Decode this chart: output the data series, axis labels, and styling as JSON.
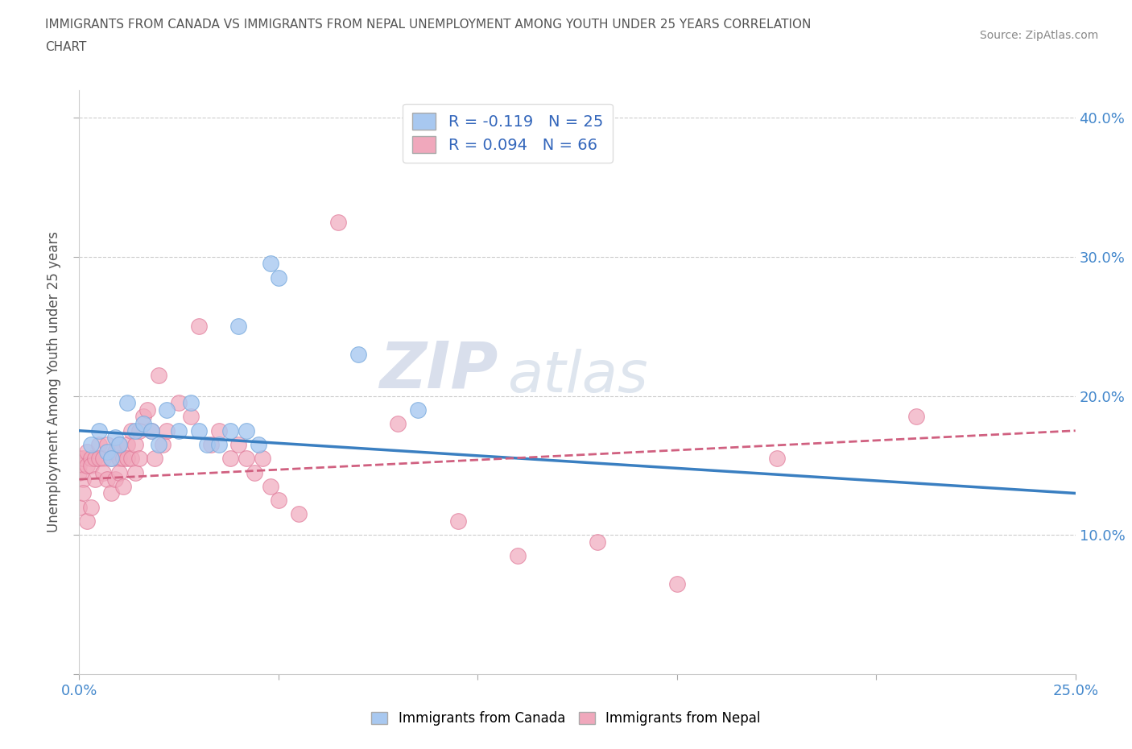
{
  "title_line1": "IMMIGRANTS FROM CANADA VS IMMIGRANTS FROM NEPAL UNEMPLOYMENT AMONG YOUTH UNDER 25 YEARS CORRELATION",
  "title_line2": "CHART",
  "source": "Source: ZipAtlas.com",
  "ylabel": "Unemployment Among Youth under 25 years",
  "xlim": [
    0.0,
    0.25
  ],
  "ylim": [
    0.0,
    0.42
  ],
  "xticks": [
    0.0,
    0.05,
    0.1,
    0.15,
    0.2,
    0.25
  ],
  "yticks": [
    0.0,
    0.1,
    0.2,
    0.3,
    0.4
  ],
  "legend1_text": "R = -0.119   N = 25",
  "legend2_text": "R = 0.094   N = 66",
  "canada_color": "#a8c8f0",
  "nepal_color": "#f0a8bc",
  "canada_edge_color": "#7aabde",
  "nepal_edge_color": "#e07898",
  "canada_line_color": "#3a7fc1",
  "nepal_line_color": "#d06080",
  "watermark_zip": "ZIP",
  "watermark_atlas": "atlas",
  "grid_color": "#cccccc",
  "background_color": "#ffffff",
  "title_color": "#555555",
  "axis_label_color": "#555555",
  "tick_label_color": "#4488cc",
  "canada_scatter_x": [
    0.003,
    0.005,
    0.007,
    0.008,
    0.009,
    0.01,
    0.012,
    0.014,
    0.016,
    0.018,
    0.02,
    0.022,
    0.025,
    0.028,
    0.03,
    0.032,
    0.035,
    0.038,
    0.04,
    0.042,
    0.045,
    0.048,
    0.05,
    0.07,
    0.085
  ],
  "canada_scatter_y": [
    0.165,
    0.175,
    0.16,
    0.155,
    0.17,
    0.165,
    0.195,
    0.175,
    0.18,
    0.175,
    0.165,
    0.19,
    0.175,
    0.195,
    0.175,
    0.165,
    0.165,
    0.175,
    0.25,
    0.175,
    0.165,
    0.295,
    0.285,
    0.23,
    0.19
  ],
  "nepal_scatter_x": [
    0.0,
    0.0,
    0.0,
    0.0,
    0.001,
    0.001,
    0.001,
    0.002,
    0.002,
    0.002,
    0.003,
    0.003,
    0.003,
    0.004,
    0.004,
    0.005,
    0.005,
    0.006,
    0.006,
    0.007,
    0.007,
    0.008,
    0.008,
    0.009,
    0.009,
    0.01,
    0.01,
    0.01,
    0.011,
    0.011,
    0.012,
    0.012,
    0.013,
    0.013,
    0.014,
    0.014,
    0.015,
    0.015,
    0.016,
    0.017,
    0.018,
    0.019,
    0.02,
    0.021,
    0.022,
    0.025,
    0.028,
    0.03,
    0.033,
    0.035,
    0.038,
    0.04,
    0.042,
    0.044,
    0.046,
    0.048,
    0.05,
    0.055,
    0.065,
    0.08,
    0.095,
    0.11,
    0.13,
    0.15,
    0.175,
    0.21
  ],
  "nepal_scatter_y": [
    0.155,
    0.15,
    0.145,
    0.12,
    0.155,
    0.14,
    0.13,
    0.16,
    0.15,
    0.11,
    0.155,
    0.15,
    0.12,
    0.155,
    0.14,
    0.165,
    0.155,
    0.155,
    0.145,
    0.165,
    0.14,
    0.155,
    0.13,
    0.16,
    0.14,
    0.165,
    0.155,
    0.145,
    0.155,
    0.135,
    0.165,
    0.155,
    0.175,
    0.155,
    0.165,
    0.145,
    0.175,
    0.155,
    0.185,
    0.19,
    0.175,
    0.155,
    0.215,
    0.165,
    0.175,
    0.195,
    0.185,
    0.25,
    0.165,
    0.175,
    0.155,
    0.165,
    0.155,
    0.145,
    0.155,
    0.135,
    0.125,
    0.115,
    0.325,
    0.18,
    0.11,
    0.085,
    0.095,
    0.065,
    0.155,
    0.185
  ],
  "canada_trend_x": [
    0.0,
    0.25
  ],
  "canada_trend_y": [
    0.175,
    0.13
  ],
  "nepal_trend_x": [
    0.0,
    0.25
  ],
  "nepal_trend_y": [
    0.14,
    0.175
  ]
}
